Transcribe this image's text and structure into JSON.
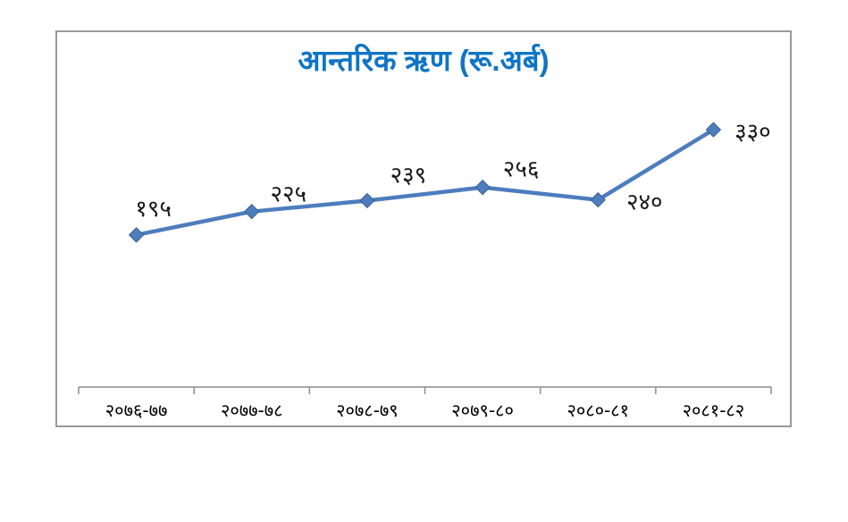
{
  "chart_data": {
    "type": "line",
    "title": "आन्तरिक ऋण (रू.अर्ब)",
    "categories": [
      "२०७६-७७",
      "२०७७-७८",
      "२०७८-७९",
      "२०७९-८०",
      "२०८०-८१",
      "२०८१-८२"
    ],
    "values": [
      195,
      225,
      239,
      256,
      240,
      330
    ],
    "value_labels": [
      "१९५",
      "२२५",
      "२३९",
      "२५६",
      "२४०",
      "३३०"
    ],
    "xlabel": "",
    "ylabel": "",
    "ylim": [
      0,
      455
    ],
    "grid": false,
    "legend": "none",
    "y_axis_visible": false,
    "marker": "diamond",
    "colors": {
      "line": "#4e7dbe",
      "marker_fill": "#4e7dbe",
      "marker_border": "#3a6191",
      "title": "#0f75c5",
      "axis": "#8c8c8c",
      "data_label": "#1a1a1a",
      "tick_label": "#000000",
      "frame_border": "#9a9a9a",
      "background": "#ffffff"
    }
  }
}
